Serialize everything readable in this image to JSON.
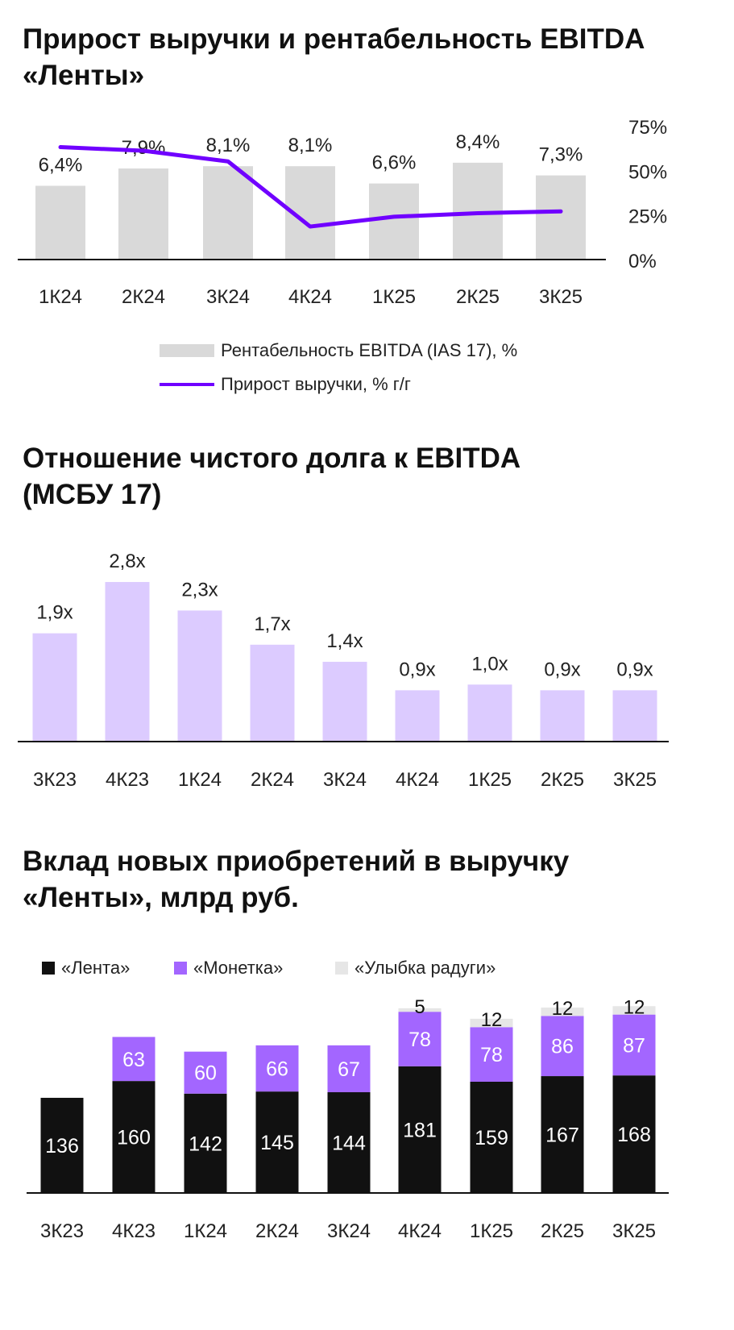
{
  "chart_data": [
    {
      "type": "bar+line",
      "title": "Прирост выручки и рентабельность EBITDA «Ленты»",
      "categories": [
        "1К24",
        "2К24",
        "3К24",
        "4К24",
        "1К25",
        "2К25",
        "3К25"
      ],
      "series": [
        {
          "name": "Рентабельность EBITDA (IAS 17), %",
          "type": "bar",
          "values": [
            6.4,
            7.9,
            8.1,
            8.1,
            6.6,
            8.4,
            7.3
          ],
          "labels": [
            "6,4%",
            "7,9%",
            "8,1%",
            "8,1%",
            "6,6%",
            "8,4%",
            "7,3%"
          ],
          "color": "#d9d9d9"
        },
        {
          "name": "Прирост выручки, % г/г",
          "type": "line",
          "axis": "right",
          "values": [
            63,
            61,
            55,
            18.5,
            24,
            26,
            27
          ],
          "color": "#7000ff"
        }
      ],
      "right_axis": {
        "ticks": [
          "0%",
          "25%",
          "50%",
          "75%"
        ],
        "values": [
          0,
          25,
          50,
          75
        ],
        "ylim": [
          0,
          75
        ]
      }
    },
    {
      "type": "bar",
      "title": "Отношение чистого долга к EBITDA (МСБУ 17)",
      "categories": [
        "3К23",
        "4К23",
        "1К24",
        "2К24",
        "3К24",
        "4К24",
        "1К25",
        "2К25",
        "3К25"
      ],
      "values": [
        1.9,
        2.8,
        2.3,
        1.7,
        1.4,
        0.9,
        1.0,
        0.9,
        0.9
      ],
      "labels": [
        "1,9x",
        "2,8x",
        "2,3x",
        "1,7x",
        "1,4x",
        "0,9x",
        "1,0x",
        "0,9x",
        "0,9x"
      ],
      "color": "#dccbff"
    },
    {
      "type": "stacked_bar",
      "title": "Вклад новых приобретений в выручку «Ленты», млрд руб.",
      "categories": [
        "3К23",
        "4К23",
        "1К24",
        "2К24",
        "3К24",
        "4К24",
        "1К25",
        "2К25",
        "3К25"
      ],
      "series": [
        {
          "name": "«Лента»",
          "values": [
            136,
            160,
            142,
            145,
            144,
            181,
            159,
            167,
            168
          ],
          "color": "#111111",
          "text": "#ffffff"
        },
        {
          "name": "«Монетка»",
          "values": [
            0,
            63,
            60,
            66,
            67,
            78,
            78,
            86,
            87
          ],
          "color": "#a366ff",
          "text": "#ffffff"
        },
        {
          "name": "«Улыбка радуги»",
          "values": [
            0,
            0,
            0,
            0,
            0,
            5,
            12,
            12,
            12
          ],
          "color": "#e6e6e6",
          "text": "#111111"
        }
      ]
    }
  ]
}
